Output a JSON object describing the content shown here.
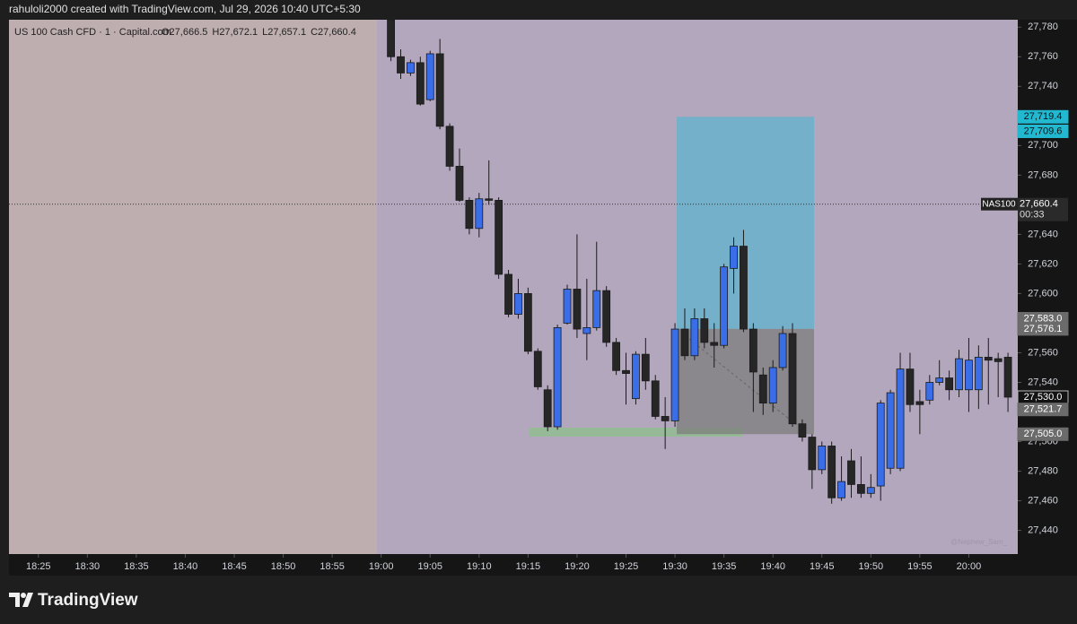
{
  "header": "rahuloli2000 created with TradingView.com, Jul 29, 2026 10:40 UTC+5:30",
  "footer": "TradingView",
  "chart_data": {
    "type": "candlestick",
    "title": "US 100 Cash CFD · 1 · Capital.com",
    "legend_values": [
      "O27,666.5",
      "H27,672.1",
      "L27,657.1",
      "C27,660.4"
    ],
    "watermark": "@Nephew_Sam_",
    "up_color": "#3a6ee8",
    "down_color": "#262626",
    "x": [
      "19:01",
      "19:02",
      "19:03",
      "19:04",
      "19:05",
      "19:06",
      "19:07",
      "19:08",
      "19:09",
      "19:10",
      "19:11",
      "19:12",
      "19:13",
      "19:14",
      "19:15",
      "19:16",
      "19:17",
      "19:18",
      "19:19",
      "19:20",
      "19:21",
      "19:22",
      "19:23",
      "19:24",
      "19:25",
      "19:26",
      "19:27",
      "19:28",
      "19:29",
      "19:30",
      "19:31",
      "19:32",
      "19:33",
      "19:34",
      "19:35",
      "19:36",
      "19:37",
      "19:38",
      "19:39",
      "19:40",
      "19:41",
      "19:42",
      "19:43",
      "19:44",
      "19:45",
      "19:46",
      "19:47",
      "19:48",
      "19:49",
      "19:50",
      "19:51",
      "19:52",
      "19:53",
      "19:54",
      "19:55",
      "19:56",
      "19:57",
      "19:58",
      "19:59",
      "20:00",
      "20:01",
      "20:02",
      "20:03",
      "20:04"
    ],
    "open": [
      27785,
      27760,
      27749,
      27756,
      27731,
      27762,
      27713,
      27686,
      27663,
      27644,
      27664,
      27663,
      27613,
      27586,
      27600,
      27561,
      27535,
      27510,
      27580,
      27603,
      27573,
      27577,
      27602,
      27567,
      27548,
      27529,
      27559,
      27541,
      27517,
      27514,
      27576,
      27558,
      27583,
      27567,
      27565,
      27617,
      27632,
      27576,
      27545,
      27526,
      27550,
      27573,
      27512,
      27503,
      27481,
      27497,
      27462,
      27487,
      27471,
      27465,
      27470,
      27482,
      27482,
      27549,
      27527,
      27528,
      27540,
      27543,
      27535,
      27535,
      27535,
      27557,
      27556,
      27557
    ],
    "high": [
      27790,
      27765,
      27758,
      27760,
      27764,
      27772,
      27715,
      27698,
      27665,
      27668,
      27690,
      27665,
      27616,
      27610,
      27604,
      27563,
      27538,
      27579,
      27606,
      27640,
      27610,
      27635,
      27605,
      27570,
      27560,
      27561,
      27570,
      27545,
      27530,
      27580,
      27590,
      27590,
      27590,
      27580,
      27620,
      27638,
      27643,
      27580,
      27550,
      27555,
      27578,
      27580,
      27515,
      27505,
      27500,
      27500,
      27490,
      27495,
      27490,
      27478,
      27528,
      27535,
      27560,
      27560,
      27535,
      27545,
      27555,
      27548,
      27562,
      27570,
      27565,
      27570,
      27560,
      27560
    ],
    "low": [
      27757,
      27745,
      27747,
      27727,
      27730,
      27711,
      27683,
      27662,
      27640,
      27638,
      27660,
      27610,
      27584,
      27583,
      27559,
      27535,
      27507,
      27508,
      27579,
      27570,
      27555,
      27575,
      27564,
      27545,
      27525,
      27525,
      27535,
      27515,
      27495,
      27510,
      27555,
      27555,
      27563,
      27550,
      27563,
      27600,
      27574,
      27520,
      27518,
      27520,
      27548,
      27510,
      27500,
      27468,
      27478,
      27458,
      27460,
      27462,
      27462,
      27462,
      27460,
      27478,
      27480,
      27520,
      27505,
      27525,
      27538,
      27528,
      27530,
      27520,
      27522,
      27525,
      27530,
      27520
    ],
    "close": [
      27760,
      27749,
      27756,
      27728,
      27762,
      27713,
      27686,
      27663,
      27644,
      27664,
      27663,
      27613,
      27586,
      27600,
      27561,
      27537,
      27510,
      27577,
      27603,
      27576,
      27577,
      27602,
      27567,
      27548,
      27546,
      27559,
      27541,
      27517,
      27514,
      27576,
      27558,
      27583,
      27567,
      27565,
      27618,
      27632,
      27576,
      27547,
      27526,
      27550,
      27573,
      27512,
      27503,
      27481,
      27497,
      27462,
      27473,
      27471,
      27465,
      27469,
      27526,
      27533,
      27549,
      27525,
      27525,
      27540,
      27543,
      27535,
      27556,
      27555,
      27557,
      27555,
      27554,
      27530
    ],
    "xlim": [
      "18:22",
      "20:05"
    ],
    "xticks": [
      "18:25",
      "18:30",
      "18:35",
      "18:40",
      "18:45",
      "18:50",
      "18:55",
      "19:00",
      "19:05",
      "19:10",
      "19:15",
      "19:20",
      "19:25",
      "19:30",
      "19:35",
      "19:40",
      "19:45",
      "19:50",
      "19:55",
      "20:00"
    ],
    "ylim": [
      27424,
      27785
    ],
    "yticks": [
      {
        "value": 27440,
        "label": "27,440"
      },
      {
        "value": 27460,
        "label": "27,460"
      },
      {
        "value": 27480,
        "label": "27,480"
      },
      {
        "value": 27500,
        "label": "27,500"
      },
      {
        "value": 27520,
        "label": "27,520"
      },
      {
        "value": 27540,
        "label": "27,540"
      },
      {
        "value": 27560,
        "label": "27,560"
      },
      {
        "value": 27580,
        "label": "27,580"
      },
      {
        "value": 27600,
        "label": "27,600"
      },
      {
        "value": 27620,
        "label": "27,620"
      },
      {
        "value": 27640,
        "label": "27,640"
      },
      {
        "value": 27660,
        "label": "27,660"
      },
      {
        "value": 27680,
        "label": "27,680"
      },
      {
        "value": 27700,
        "label": "27,700"
      },
      {
        "value": 27720,
        "label": "27,720"
      },
      {
        "value": 27740,
        "label": "27,740"
      },
      {
        "value": 27760,
        "label": "27,760"
      },
      {
        "value": 27780,
        "label": "27,780"
      }
    ],
    "last_price": {
      "value": 27660.4,
      "label": "27,660.4",
      "symbol": "NAS100",
      "countdown": "00:33"
    },
    "price_tags": [
      {
        "value": 27719.4,
        "label": "27,719.4",
        "color": "#22b8d0"
      },
      {
        "value": 27709.6,
        "label": "27,709.6",
        "color": "#22b8d0"
      },
      {
        "value": 27583.0,
        "label": "27,583.0",
        "color": "#6b6b6b"
      },
      {
        "value": 27576.1,
        "label": "27,576.1",
        "color": "#6b6b6b"
      },
      {
        "value": 27530.0,
        "label": "27,530.0",
        "color": "#131313"
      },
      {
        "value": 27521.7,
        "label": "27,521.7",
        "color": "#6b6b6b"
      },
      {
        "value": 27505.0,
        "label": "27,505.0",
        "color": "#6b6b6b"
      }
    ]
  }
}
